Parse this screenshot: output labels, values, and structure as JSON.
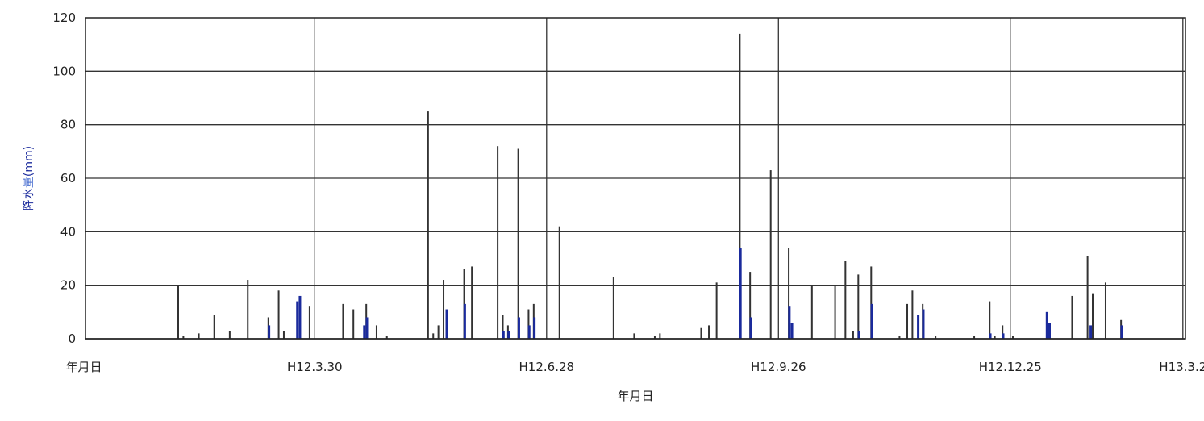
{
  "chart_data": {
    "type": "bar",
    "title": "",
    "xlabel": "年月日",
    "ylabel_parts": [
      "降水",
      "量",
      "(mm)"
    ],
    "origin_label": "年月日",
    "ylim": [
      0,
      120
    ],
    "yticks": [
      0,
      20,
      40,
      60,
      80,
      100,
      120
    ],
    "xlim": [
      "H12.1.1",
      "H13.3.2"
    ],
    "xticks": [
      {
        "label": "H12.3.30",
        "day": 89
      },
      {
        "label": "H12.6.28",
        "day": 179
      },
      {
        "label": "H12.9.26",
        "day": 269
      },
      {
        "label": "H12.12.25",
        "day": 359
      },
      {
        "label": "H13.3.2",
        "day": 426
      }
    ],
    "grid": true,
    "x_unit": "days since H12.1.1",
    "series": [
      {
        "name": "",
        "color": "#333333",
        "points": [
          [
            36,
            20
          ],
          [
            38,
            1
          ],
          [
            44,
            2
          ],
          [
            50,
            9
          ],
          [
            56,
            3
          ],
          [
            63,
            22
          ],
          [
            71,
            8
          ],
          [
            75,
            18
          ],
          [
            77,
            3
          ],
          [
            87,
            12
          ],
          [
            100,
            13
          ],
          [
            104,
            11
          ],
          [
            109,
            13
          ],
          [
            113,
            5
          ],
          [
            117,
            1
          ],
          [
            133,
            85
          ],
          [
            135,
            2
          ],
          [
            137,
            5
          ],
          [
            139,
            22
          ],
          [
            147,
            26
          ],
          [
            150,
            27
          ],
          [
            160,
            72
          ],
          [
            162,
            9
          ],
          [
            164,
            5
          ],
          [
            168,
            71
          ],
          [
            172,
            11
          ],
          [
            174,
            13
          ],
          [
            184,
            42
          ],
          [
            205,
            23
          ],
          [
            213,
            2
          ],
          [
            221,
            1
          ],
          [
            223,
            2
          ],
          [
            239,
            4
          ],
          [
            242,
            5
          ],
          [
            245,
            21
          ],
          [
            254,
            114
          ],
          [
            258,
            25
          ],
          [
            266,
            63
          ],
          [
            273,
            34
          ],
          [
            282,
            20
          ],
          [
            291,
            20
          ],
          [
            295,
            29
          ],
          [
            298,
            3
          ],
          [
            300,
            24
          ],
          [
            305,
            27
          ],
          [
            316,
            1
          ],
          [
            319,
            13
          ],
          [
            321,
            18
          ],
          [
            325,
            13
          ],
          [
            330,
            1
          ],
          [
            345,
            1
          ],
          [
            351,
            14
          ],
          [
            353,
            1
          ],
          [
            356,
            5
          ],
          [
            360,
            1
          ],
          [
            383,
            16
          ],
          [
            389,
            31
          ],
          [
            391,
            17
          ],
          [
            396,
            21
          ],
          [
            402,
            7
          ]
        ]
      },
      {
        "name": "",
        "color": "#1a2a9c",
        "points": [
          [
            71,
            5
          ],
          [
            83,
            16
          ],
          [
            82,
            14
          ],
          [
            109,
            8
          ],
          [
            108,
            5
          ],
          [
            147,
            13
          ],
          [
            140,
            11
          ],
          [
            162,
            3
          ],
          [
            164,
            3
          ],
          [
            168,
            8
          ],
          [
            174,
            8
          ],
          [
            172,
            5
          ],
          [
            254,
            34
          ],
          [
            258,
            8
          ],
          [
            273,
            12
          ],
          [
            274,
            6
          ],
          [
            300,
            3
          ],
          [
            305,
            13
          ],
          [
            325,
            11
          ],
          [
            323,
            9
          ],
          [
            351,
            2
          ],
          [
            356,
            2
          ],
          [
            373,
            10
          ],
          [
            374,
            6
          ],
          [
            390,
            5
          ],
          [
            402,
            5
          ]
        ]
      }
    ]
  }
}
